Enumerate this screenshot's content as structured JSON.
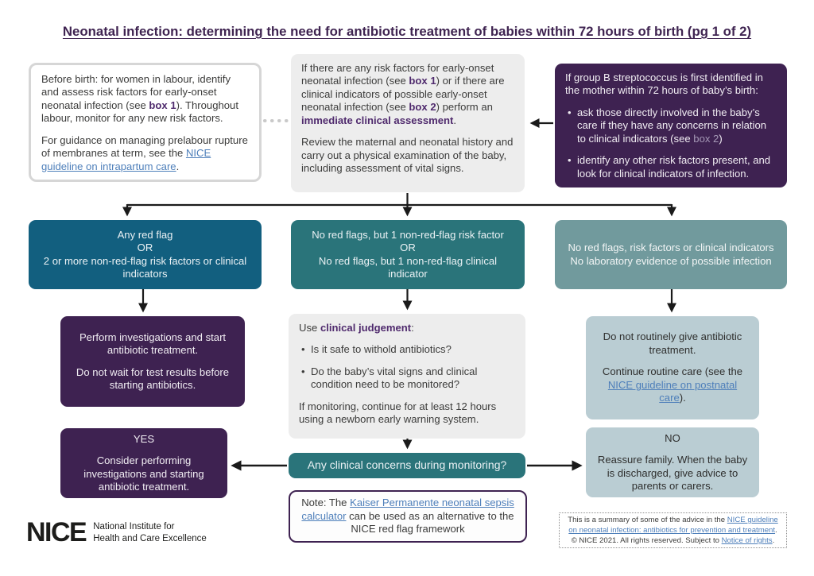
{
  "title": "Neonatal infection: determining the need for antibiotic treatment of babies within 72 hours of birth (pg 1 of 2)",
  "colors": {
    "title_purple": "#3f2451",
    "dark_purple": "#3e2251",
    "dark_teal": "#125f7f",
    "teal": "#2a747a",
    "gray_teal": "#719a9d",
    "light_gray": "#ededed",
    "light_blue_gray": "#bacdd3",
    "link_blue": "#4e7fba",
    "inline_purple": "#4f2a6d"
  },
  "boxes": {
    "before_birth": {
      "paras": [
        {
          "seg": [
            {
              "t": "Before birth: for women in labour, identify and assess risk factors for early-onset neonatal infection (see "
            },
            {
              "t": "box 1",
              "s": "b"
            },
            {
              "t": "). Throughout labour, monitor for any new risk factors."
            }
          ]
        },
        {
          "seg": [
            {
              "t": "For guidance on managing prelabour rupture of membranes at term, see the "
            },
            {
              "t": "NICE guideline on intrapartum care",
              "s": "link",
              "n": "intrapartum-care-link"
            },
            {
              "t": "."
            }
          ]
        }
      ]
    },
    "assessment": {
      "paras": [
        {
          "seg": [
            {
              "t": "If there are any risk factors for early-onset neonatal infection (see "
            },
            {
              "t": "box 1",
              "s": "b"
            },
            {
              "t": ") or if there are clinical indicators of possible early-onset neonatal infection (see "
            },
            {
              "t": "box 2",
              "s": "b"
            },
            {
              "t": ") perform an "
            },
            {
              "t": "immediate clinical assessment",
              "s": "b"
            },
            {
              "t": "."
            }
          ]
        },
        {
          "seg": [
            {
              "t": "Review the maternal and neonatal history and carry out a physical examination of the baby, including assessment of vital signs."
            }
          ]
        }
      ]
    },
    "gbs": {
      "paras": [
        {
          "seg": [
            {
              "t": "If group B streptococcus is first identified in the mother within 72 hours of baby’s birth:"
            }
          ]
        },
        {
          "bullet": true,
          "seg": [
            {
              "t": "ask those directly involved in the baby’s care if they have any concerns in relation to clinical indicators (see "
            },
            {
              "t": "box 2",
              "s": "muted"
            },
            {
              "t": ")"
            }
          ]
        },
        {
          "bullet": true,
          "seg": [
            {
              "t": "identify any other risk factors present, and look for clinical indicators of infection."
            }
          ]
        }
      ]
    },
    "red_flag": {
      "paras": [
        {
          "seg": [
            {
              "t": "Any red flag"
            }
          ]
        },
        {
          "seg": [
            {
              "t": "OR"
            }
          ]
        },
        {
          "seg": [
            {
              "t": "2 or more non-red-flag risk factors or clinical indicators"
            }
          ]
        }
      ]
    },
    "one_risk": {
      "paras": [
        {
          "seg": [
            {
              "t": "No red flags, but 1 non-red-flag risk factor"
            }
          ]
        },
        {
          "seg": [
            {
              "t": "OR"
            }
          ]
        },
        {
          "seg": [
            {
              "t": "No red flags, but 1 non-red-flag clinical indicator"
            }
          ]
        }
      ]
    },
    "no_flags": {
      "paras": [
        {
          "seg": [
            {
              "t": "No red flags, risk factors or clinical indicators"
            }
          ]
        },
        {
          "seg": [
            {
              "t": "No laboratory evidence of possible infection"
            }
          ]
        }
      ]
    },
    "perform": {
      "paras": [
        {
          "seg": [
            {
              "t": "Perform investigations and start antibiotic treatment."
            }
          ]
        },
        {
          "seg": [
            {
              "t": "Do not wait for test results before starting antibiotics."
            }
          ]
        }
      ]
    },
    "judgement": {
      "paras": [
        {
          "seg": [
            {
              "t": "Use "
            },
            {
              "t": "clinical judgement",
              "s": "b"
            },
            {
              "t": ":"
            }
          ]
        },
        {
          "bullet": true,
          "seg": [
            {
              "t": "Is it safe to withold antibiotics?"
            }
          ]
        },
        {
          "bullet": true,
          "seg": [
            {
              "t": "Do the baby’s vital signs and clinical condition need to be monitored?"
            }
          ]
        },
        {
          "seg": [
            {
              "t": "If monitoring, continue for at least 12 hours using a newborn early warning system."
            }
          ]
        }
      ]
    },
    "no_routine": {
      "paras": [
        {
          "seg": [
            {
              "t": "Do not routinely give antibiotic treatment."
            }
          ]
        },
        {
          "seg": [
            {
              "t": "Continue routine care (see the "
            },
            {
              "t": "NICE guideline on postnatal care",
              "s": "link",
              "n": "postnatal-care-link"
            },
            {
              "t": ")."
            }
          ]
        }
      ]
    },
    "yes": {
      "paras": [
        {
          "seg": [
            {
              "t": "YES"
            }
          ]
        },
        {
          "seg": [
            {
              "t": "Consider performing investigations and starting antibiotic treatment."
            }
          ]
        }
      ]
    },
    "monitoring_question": {
      "label": "Any clinical concerns during monitoring?"
    },
    "no": {
      "paras": [
        {
          "seg": [
            {
              "t": "NO"
            }
          ]
        },
        {
          "seg": [
            {
              "t": "Reassure family. When the baby is discharged, give advice to parents or carers."
            }
          ]
        }
      ]
    },
    "note": {
      "paras": [
        {
          "seg": [
            {
              "t": "Note: The "
            },
            {
              "t": "Kaiser Permanente neonatal sepsis calculator",
              "s": "link",
              "n": "kaiser-permanente-link"
            },
            {
              "t": " can be used as an alternative to the NICE red flag framework"
            }
          ]
        }
      ]
    }
  },
  "footer": {
    "logo_text": "NICE",
    "logo_tagline_line1": "National Institute for",
    "logo_tagline_line2": "Health and Care Excellence",
    "copyright": {
      "paras": [
        {
          "seg": [
            {
              "t": "This is a summary of some of the advice in the "
            },
            {
              "t": "NICE guideline on neonatal infection: antibiotics for prevention and treatment",
              "s": "link",
              "n": "neonatal-infection-guideline-link"
            },
            {
              "t": ". © NICE 2021. All rights reserved. Subject to "
            },
            {
              "t": "Notice of rights",
              "s": "link",
              "n": "notice-of-rights-link"
            },
            {
              "t": "."
            }
          ]
        }
      ]
    }
  }
}
